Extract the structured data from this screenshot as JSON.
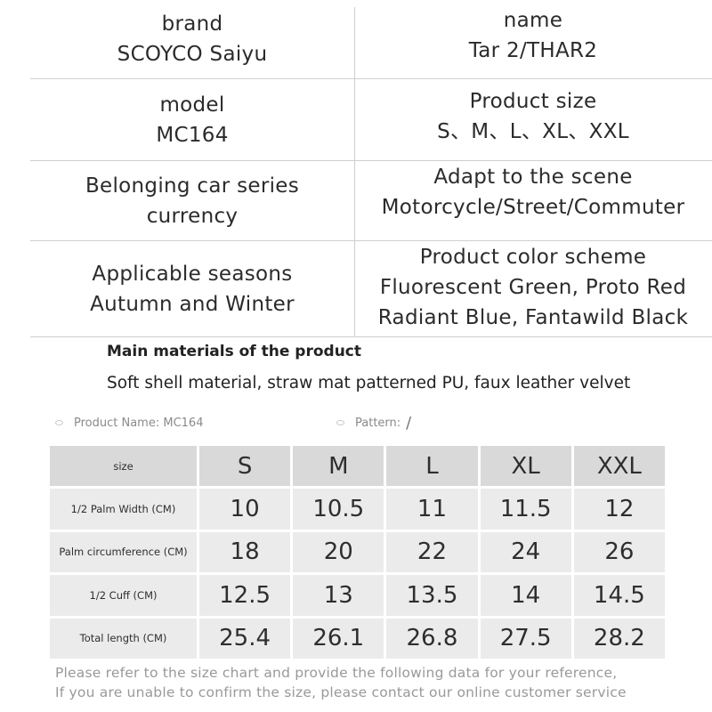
{
  "spec": {
    "rows": [
      {
        "left_label": "brand",
        "left_value": "SCOYCO Saiyu",
        "right_label": "name",
        "right_value": "Tar 2/THAR2"
      },
      {
        "left_label": "model",
        "left_value": "MC164",
        "right_label": "Product size",
        "right_value": "S、M、L、XL、XXL"
      },
      {
        "left_label": "Belonging car series",
        "left_value": "currency",
        "right_label": "Adapt to the scene",
        "right_value": "Motorcycle/Street/Commuter"
      },
      {
        "left_label": "Applicable seasons",
        "left_value": "Autumn and Winter",
        "right_label": "Product color scheme",
        "right_value": "Fluorescent Green, Proto Red",
        "right_value_2": "Radiant Blue, Fantawild Black"
      }
    ]
  },
  "materials": {
    "title": "Main materials of the product",
    "text": "Soft shell material, straw mat patterned PU, faux leather velvet"
  },
  "size_chart": {
    "product_name": "Product Name: MC164",
    "pattern_label": "Pattern:",
    "pattern_value": "/",
    "header_label": "size",
    "columns": [
      "S",
      "M",
      "L",
      "XL",
      "XXL"
    ],
    "rows": [
      {
        "label": "1/2 Palm Width (CM)",
        "values": [
          "10",
          "10.5",
          "11",
          "11.5",
          "12"
        ]
      },
      {
        "label": "Palm circumference (CM)",
        "values": [
          "18",
          "20",
          "22",
          "24",
          "26"
        ]
      },
      {
        "label": "1/2 Cuff (CM)",
        "values": [
          "12.5",
          "13",
          "13.5",
          "14",
          "14.5"
        ]
      },
      {
        "label": "Total length (CM)",
        "values": [
          "25.4",
          "26.1",
          "26.8",
          "27.5",
          "28.2"
        ]
      }
    ]
  },
  "footer": {
    "line1": "Please refer to the size chart and provide the following data for your reference,",
    "line2": "If you are unable to confirm the size, please contact our online customer service"
  }
}
